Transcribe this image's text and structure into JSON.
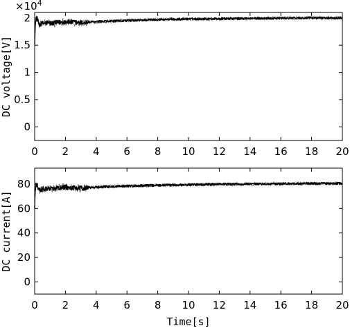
{
  "chart_data": [
    {
      "type": "line",
      "ylabel": "DC voltage[V]",
      "xlabel": "",
      "exponent_label": "×10",
      "exponent_power": "4",
      "xlim": [
        0,
        20
      ],
      "ylim": [
        -0.25,
        2.1
      ],
      "xticks": [
        0,
        2,
        4,
        6,
        8,
        10,
        12,
        14,
        16,
        18,
        20
      ],
      "xtick_labels": [
        "0",
        "2",
        "4",
        "6",
        "8",
        "10",
        "12",
        "14",
        "16",
        "18",
        "20"
      ],
      "yticks": [
        0,
        0.5,
        1,
        1.5,
        2
      ],
      "ytick_labels": [
        "0",
        "0.5",
        "1",
        "1.5",
        "2"
      ],
      "grid": false,
      "series": [
        {
          "x": [
            0,
            0.05,
            0.1,
            0.2,
            0.3,
            0.5,
            0.8,
            1.2,
            1.6,
            2.0,
            2.5,
            3.0,
            3.5,
            4.0,
            5.0,
            6.0,
            7.0,
            8.0,
            9.0,
            10.0,
            12.0,
            14.0,
            16.0,
            18.0,
            20.0
          ],
          "y": [
            1.55,
            1.9,
            2.0,
            1.95,
            1.88,
            1.9,
            1.91,
            1.9,
            1.92,
            1.93,
            1.92,
            1.91,
            1.92,
            1.93,
            1.94,
            1.95,
            1.96,
            1.97,
            1.975,
            1.98,
            1.985,
            1.99,
            1.995,
            2.0,
            2.0
          ],
          "noise": 0.02
        }
      ]
    },
    {
      "type": "line",
      "ylabel": "DC current[A]",
      "xlabel": "Time[s]",
      "xlim": [
        0,
        20
      ],
      "ylim": [
        -10,
        93
      ],
      "xticks": [
        0,
        2,
        4,
        6,
        8,
        10,
        12,
        14,
        16,
        18,
        20
      ],
      "xtick_labels": [
        "0",
        "2",
        "4",
        "6",
        "8",
        "10",
        "12",
        "14",
        "16",
        "18",
        "20"
      ],
      "yticks": [
        0,
        20,
        40,
        60,
        80
      ],
      "ytick_labels": [
        "0",
        "20",
        "40",
        "60",
        "80"
      ],
      "grid": false,
      "series": [
        {
          "x": [
            0,
            0.05,
            0.1,
            0.2,
            0.3,
            0.5,
            0.8,
            1.2,
            1.6,
            2.0,
            2.5,
            3.0,
            3.5,
            4.0,
            5.0,
            6.0,
            7.0,
            8.0,
            9.0,
            10.0,
            12.0,
            14.0,
            16.0,
            18.0,
            20.0
          ],
          "y": [
            62,
            76,
            80,
            78,
            75,
            76,
            76.5,
            76,
            77,
            77.5,
            77,
            76.5,
            77,
            77.5,
            78,
            78.3,
            78.6,
            79,
            79.2,
            79.5,
            79.8,
            80,
            80.2,
            80.4,
            80.5
          ],
          "noise": 0.9
        }
      ]
    }
  ]
}
